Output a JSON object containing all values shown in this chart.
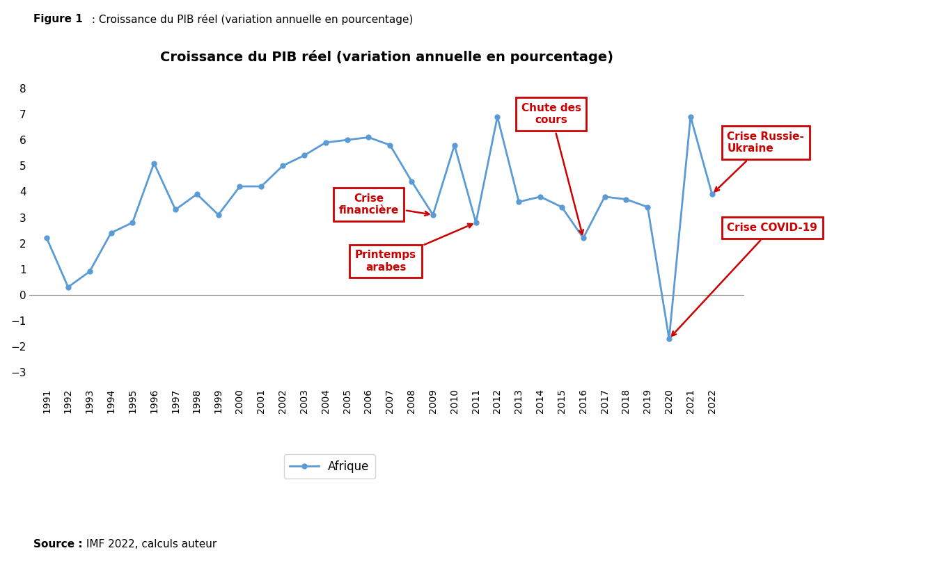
{
  "title": "Croissance du PIB réel (variation annuelle en pourcentage)",
  "figure_label_bold": "Figure 1",
  "figure_label_normal": " : Croissance du PIB réel (variation annuelle en pourcentage)",
  "source_bold": "Source :",
  "source_normal": " IMF 2022, calculs auteur",
  "years": [
    1991,
    1992,
    1993,
    1994,
    1995,
    1996,
    1997,
    1998,
    1999,
    2000,
    2001,
    2002,
    2003,
    2004,
    2005,
    2006,
    2007,
    2008,
    2009,
    2010,
    2011,
    2012,
    2013,
    2014,
    2015,
    2016,
    2017,
    2018,
    2019,
    2020,
    2021,
    2022
  ],
  "values": [
    2.2,
    0.3,
    0.9,
    2.4,
    2.8,
    5.1,
    3.3,
    3.9,
    3.1,
    4.2,
    4.2,
    5.0,
    5.4,
    5.9,
    6.0,
    6.1,
    5.8,
    4.4,
    3.1,
    5.8,
    2.8,
    6.9,
    3.6,
    3.8,
    3.4,
    2.2,
    3.8,
    3.7,
    3.4,
    -1.7,
    6.9,
    3.9
  ],
  "line_color": "#5B9BD5",
  "marker": "o",
  "marker_size": 5,
  "line_width": 2.0,
  "ylim": [
    -3.5,
    8.5
  ],
  "yticks": [
    -3,
    -2,
    -1,
    0,
    1,
    2,
    3,
    4,
    5,
    6,
    7,
    8
  ],
  "legend_label": "Afrique",
  "annotation_color": "#CC0000",
  "annotation_fontsize": 11,
  "annotation_fontweight": "bold",
  "background_color": "#ffffff",
  "title_fontsize": 14,
  "title_fontweight": "bold"
}
